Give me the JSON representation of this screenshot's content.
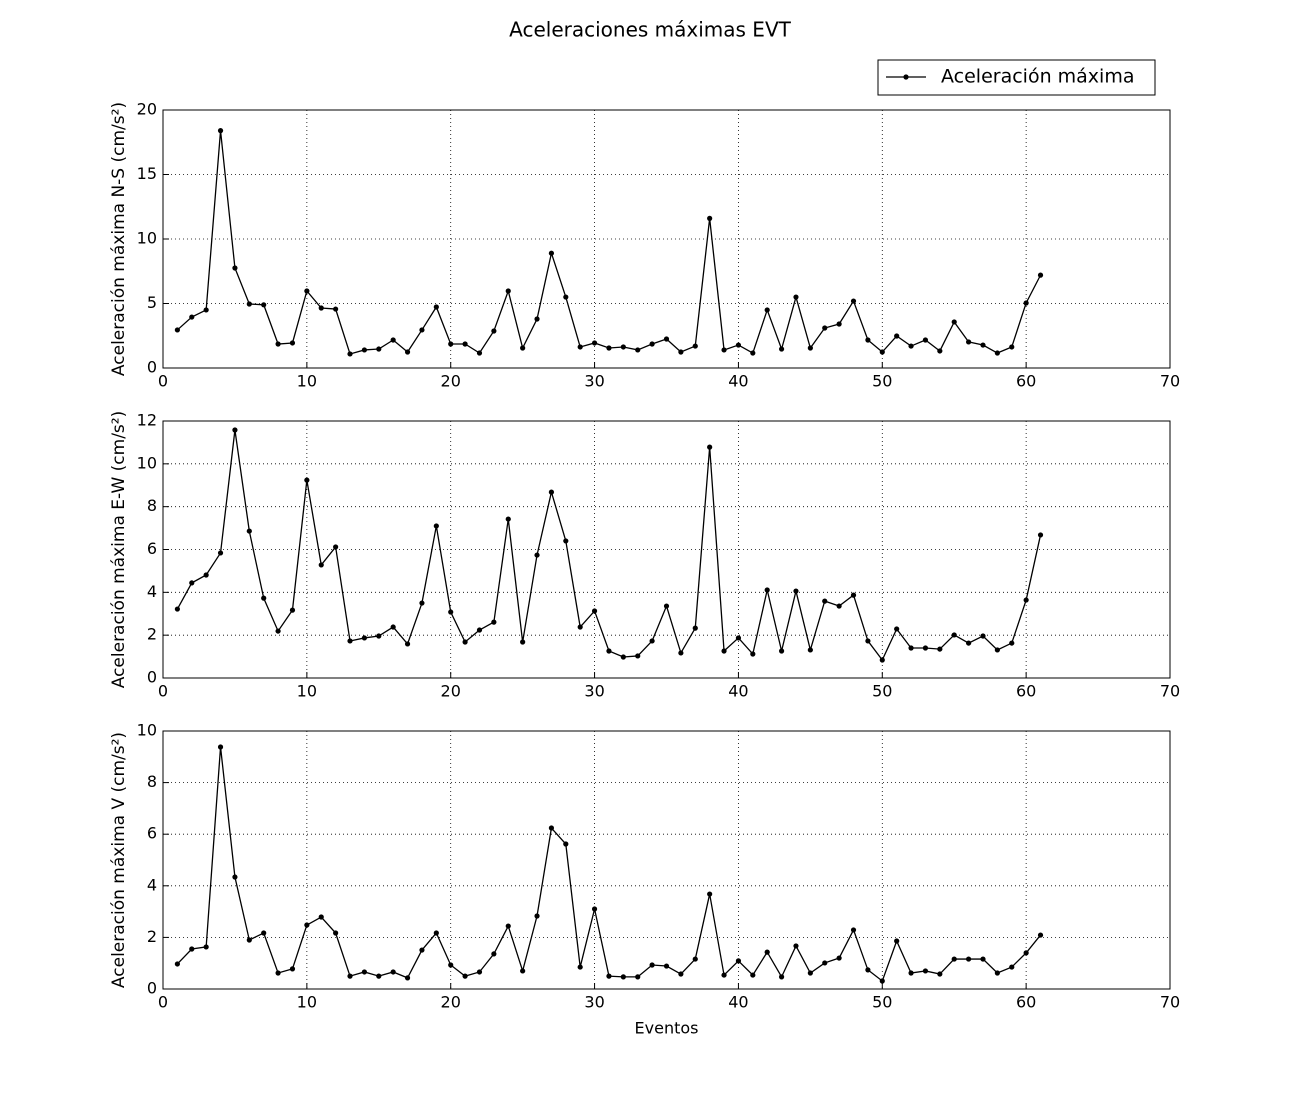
{
  "chart_data": [
    {
      "type": "line",
      "title": "Aceleraciones máximas EVT",
      "y_label": "Aceleración máxima N-S (cm/s²)",
      "legend": "upper right",
      "grid": true,
      "x": [
        1,
        2,
        3,
        4,
        5,
        6,
        7,
        8,
        9,
        10,
        11,
        12,
        13,
        14,
        15,
        16,
        17,
        18,
        19,
        20,
        21,
        22,
        23,
        24,
        25,
        26,
        27,
        28,
        29,
        30,
        31,
        32,
        33,
        34,
        35,
        36,
        37,
        38,
        39,
        40,
        41,
        42,
        43,
        44,
        45,
        46,
        47,
        48,
        49,
        50,
        51,
        52,
        53,
        54,
        55,
        56,
        57,
        58,
        59,
        60,
        61
      ],
      "series": [
        {
          "name": "Aceleración máxima",
          "color": "#000000",
          "values": [
            2.95,
            3.95,
            4.5,
            18.4,
            7.75,
            4.96,
            4.9,
            1.86,
            1.94,
            5.97,
            4.65,
            4.57,
            1.09,
            1.4,
            1.47,
            2.17,
            1.24,
            2.95,
            4.73,
            1.86,
            1.86,
            1.16,
            2.87,
            5.97,
            1.55,
            3.8,
            8.9,
            5.5,
            1.63,
            1.94,
            1.55,
            1.63,
            1.4,
            1.86,
            2.25,
            1.24,
            1.7,
            11.6,
            1.4,
            1.78,
            1.16,
            4.5,
            1.47,
            5.5,
            1.55,
            3.1,
            3.41,
            5.19,
            2.17,
            1.24,
            2.48,
            1.7,
            2.17,
            1.32,
            3.57,
            2.02,
            1.78,
            1.16,
            1.63,
            5.04,
            7.2
          ]
        }
      ],
      "xlim": [
        0,
        70
      ],
      "xticks": [
        0,
        10,
        20,
        30,
        40,
        50,
        60,
        70
      ],
      "ylim": [
        0,
        20
      ],
      "yticks": [
        0,
        5,
        10,
        15,
        20
      ]
    },
    {
      "type": "line",
      "y_label": "Aceleración máxima E-W (cm/s²)",
      "grid": true,
      "x": [
        1,
        2,
        3,
        4,
        5,
        6,
        7,
        8,
        9,
        10,
        11,
        12,
        13,
        14,
        15,
        16,
        17,
        18,
        19,
        20,
        21,
        22,
        23,
        24,
        25,
        26,
        27,
        28,
        29,
        30,
        31,
        32,
        33,
        34,
        35,
        36,
        37,
        38,
        39,
        40,
        41,
        42,
        43,
        44,
        45,
        46,
        47,
        48,
        49,
        50,
        51,
        52,
        53,
        54,
        55,
        56,
        57,
        58,
        59,
        60,
        61
      ],
      "series": [
        {
          "color": "#000000",
          "values": [
            3.22,
            4.44,
            4.81,
            5.84,
            11.58,
            6.86,
            3.73,
            2.19,
            3.17,
            9.24,
            5.28,
            6.12,
            1.73,
            1.87,
            1.96,
            2.38,
            1.59,
            3.5,
            7.1,
            3.08,
            1.68,
            2.24,
            2.61,
            7.42,
            1.68,
            5.74,
            8.68,
            6.4,
            2.38,
            3.13,
            1.26,
            0.98,
            1.03,
            1.73,
            3.36,
            1.17,
            2.33,
            10.78,
            1.26,
            1.87,
            1.12,
            4.11,
            1.26,
            4.06,
            1.31,
            3.59,
            3.36,
            3.87,
            1.73,
            0.84,
            2.29,
            1.4,
            1.4,
            1.35,
            2.01,
            1.63,
            1.96,
            1.31,
            1.63,
            3.64,
            6.68
          ]
        }
      ],
      "xlim": [
        0,
        70
      ],
      "xticks": [
        0,
        10,
        20,
        30,
        40,
        50,
        60,
        70
      ],
      "ylim": [
        0,
        12
      ],
      "yticks": [
        0,
        2,
        4,
        6,
        8,
        10,
        12
      ]
    },
    {
      "type": "line",
      "x_label": "Eventos",
      "y_label": "Aceleración máxima V (cm/s²)",
      "grid": true,
      "x": [
        1,
        2,
        3,
        4,
        5,
        6,
        7,
        8,
        9,
        10,
        11,
        12,
        13,
        14,
        15,
        16,
        17,
        18,
        19,
        20,
        21,
        22,
        23,
        24,
        25,
        26,
        27,
        28,
        29,
        30,
        31,
        32,
        33,
        34,
        35,
        36,
        37,
        38,
        39,
        40,
        41,
        42,
        43,
        44,
        45,
        46,
        47,
        48,
        49,
        50,
        51,
        52,
        53,
        54,
        55,
        56,
        57,
        58,
        59,
        60,
        61
      ],
      "series": [
        {
          "color": "#000000",
          "values": [
            0.97,
            1.55,
            1.63,
            9.38,
            4.34,
            1.9,
            2.17,
            0.62,
            0.78,
            2.48,
            2.79,
            2.17,
            0.5,
            0.66,
            0.5,
            0.66,
            0.43,
            1.51,
            2.17,
            0.93,
            0.5,
            0.66,
            1.36,
            2.44,
            0.7,
            2.83,
            6.24,
            5.62,
            0.85,
            3.1,
            0.5,
            0.47,
            0.47,
            0.93,
            0.89,
            0.58,
            1.16,
            3.68,
            0.54,
            1.09,
            0.54,
            1.43,
            0.47,
            1.67,
            0.62,
            1.01,
            1.2,
            2.29,
            0.74,
            0.31,
            1.86,
            0.62,
            0.7,
            0.58,
            1.16,
            1.16,
            1.16,
            0.62,
            0.85,
            1.4,
            2.09
          ]
        }
      ],
      "xlim": [
        0,
        70
      ],
      "xticks": [
        0,
        10,
        20,
        30,
        40,
        50,
        60,
        70
      ],
      "ylim": [
        0,
        10
      ],
      "yticks": [
        0,
        2,
        4,
        6,
        8,
        10
      ]
    }
  ]
}
